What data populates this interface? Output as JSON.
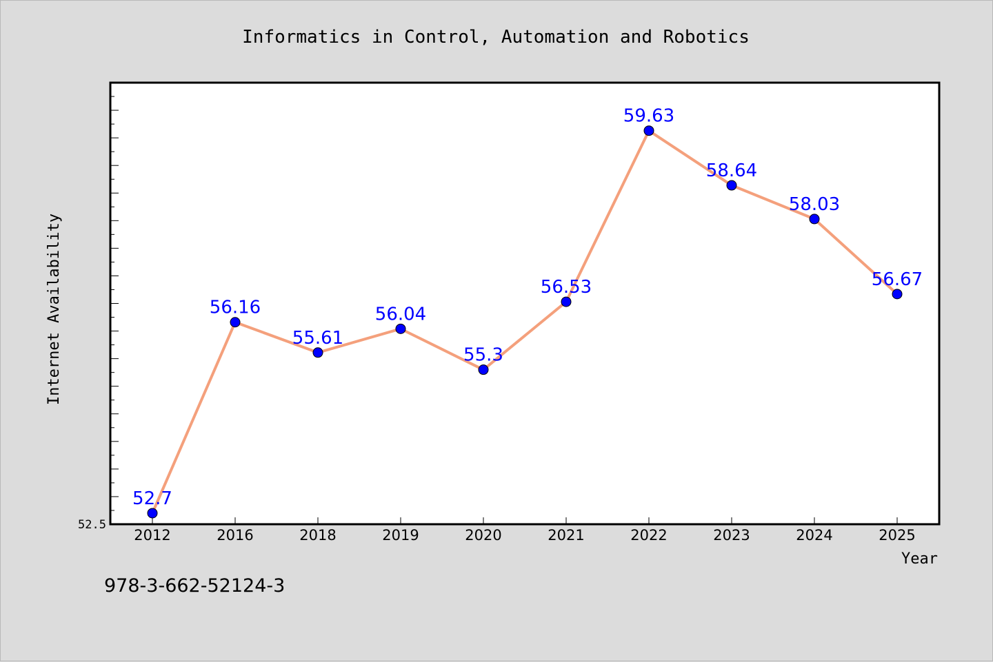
{
  "chart_data": {
    "type": "line",
    "title": "Informatics in Control, Automation and Robotics",
    "xlabel": "Year",
    "ylabel": "Internet Availability",
    "categories": [
      "2012",
      "2016",
      "2018",
      "2019",
      "2020",
      "2021",
      "2022",
      "2023",
      "2024",
      "2025"
    ],
    "series": [
      {
        "values": [
          52.7,
          56.16,
          55.61,
          56.04,
          55.3,
          56.53,
          59.63,
          58.64,
          58.03,
          56.67
        ],
        "labels": [
          "52.7",
          "56.16",
          "55.61",
          "56.04",
          "55.3",
          "56.53",
          "59.63",
          "58.64",
          "58.03",
          "56.67"
        ],
        "line_color": "#f4a07c",
        "marker_color": "#0000ff",
        "label_color": "#0000ff"
      }
    ],
    "ylim": [
      52.5,
      60.5
    ],
    "y_tick_label": "52.5",
    "grid": false,
    "legend": "none"
  },
  "footer": {
    "code": "978-3-662-52124-3"
  },
  "colors": {
    "background": "#dcdcdc",
    "plot_background": "#ffffff"
  }
}
